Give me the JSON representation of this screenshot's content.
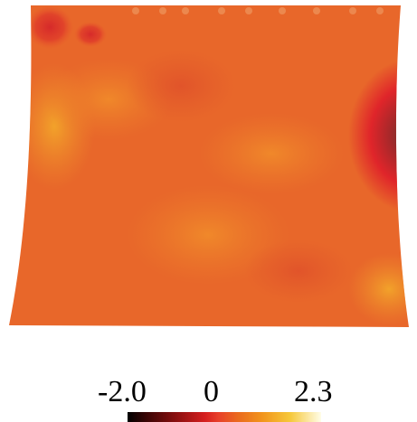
{
  "colorbar": {
    "min_label": "-2.0",
    "mid_label": "0",
    "max_label": "2.3",
    "min_value": -2.0,
    "max_value": 2.3,
    "colormap": [
      "#000000",
      "#8a0f0f",
      "#d61f1f",
      "#ea6a1e",
      "#f2961c",
      "#f6c83a",
      "#fffde8"
    ]
  },
  "field": {
    "base_color": "#e8672a"
  }
}
